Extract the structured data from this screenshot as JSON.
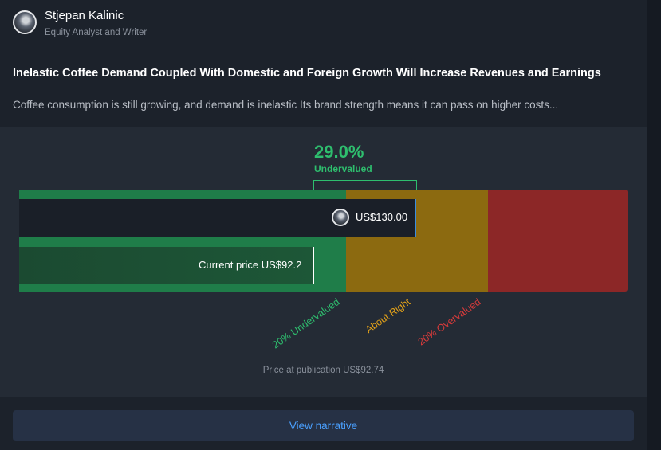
{
  "author": {
    "name": "Stjepan Kalinic",
    "role": "Equity Analyst and Writer",
    "avatar_icon": "author-avatar"
  },
  "narrative": {
    "title": "Inelastic Coffee Demand Coupled With Domestic and Foreign Growth Will Increase Revenues and Earnings",
    "summary": "Coffee consumption is still growing, and demand is inelastic  Its brand strength means it can pass on higher costs..."
  },
  "valuation": {
    "percent": "29.0%",
    "status": "Undervalued",
    "fair_value_label": "US$130.00",
    "current_price_label": "Current price US$92.2",
    "zone_labels": {
      "undervalued": "20% Undervalued",
      "about_right": "About Right",
      "overvalued": "20% Overvalued"
    },
    "publication_price": "Price at publication US$92.74",
    "colors": {
      "undervalued": "#1f7d49",
      "about_right": "#8c6a10",
      "overvalued": "#8c2727",
      "accent_green": "#2ebe6e",
      "fair_value_line": "#3b8de0"
    }
  },
  "actions": {
    "view_narrative": "View narrative"
  }
}
